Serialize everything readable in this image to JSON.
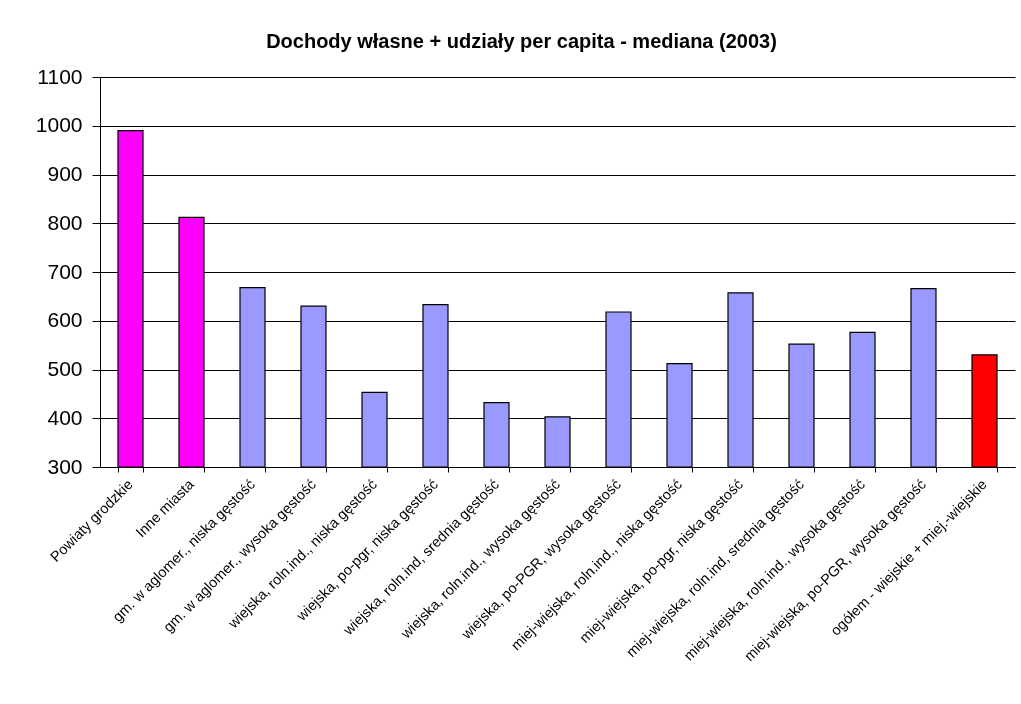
{
  "chart_data": {
    "type": "bar",
    "title": "Dochody własne + udziały per capita - mediana (2003)",
    "categories": [
      "Powiaty grodzkie",
      "Inne miasta",
      "gm. w aglomer., niska gęstość",
      "gm. w aglomer., wysoka gęstość",
      "wiejska, roln.ind., niska gęstość",
      "wiejska, po-pgr, niska gęstość",
      "wiejska, roln.ind, srednia gęstość",
      "wiejska, roln.ind., wysoka gęstość",
      "wiejska, po-PGR, wysoka gęstość",
      "miej-wiejska, roln.ind., niska gęstość",
      "miej-wiejska, po-pgr, niska gęstość",
      "miej-wiejska, roln.ind, srednia gęstość",
      "miej-wiejska, roln.ind., wysoka gęstość",
      "miej-wiejska, po-PGR, wysoka gęstość",
      "ogółem - wiejskie + miej.-wiejskie"
    ],
    "values": [
      990,
      812,
      668,
      630,
      453,
      633,
      432,
      403,
      618,
      512,
      657,
      552,
      576,
      666,
      530
    ],
    "colors": [
      "#ff00ff",
      "#ff00ff",
      "#9999ff",
      "#9999ff",
      "#9999ff",
      "#9999ff",
      "#9999ff",
      "#9999ff",
      "#9999ff",
      "#9999ff",
      "#9999ff",
      "#9999ff",
      "#9999ff",
      "#9999ff",
      "#ff0000"
    ],
    "ylim": [
      300,
      1100
    ],
    "yticks": [
      300,
      400,
      500,
      600,
      700,
      800,
      900,
      1000,
      1100
    ],
    "grid": "y"
  }
}
